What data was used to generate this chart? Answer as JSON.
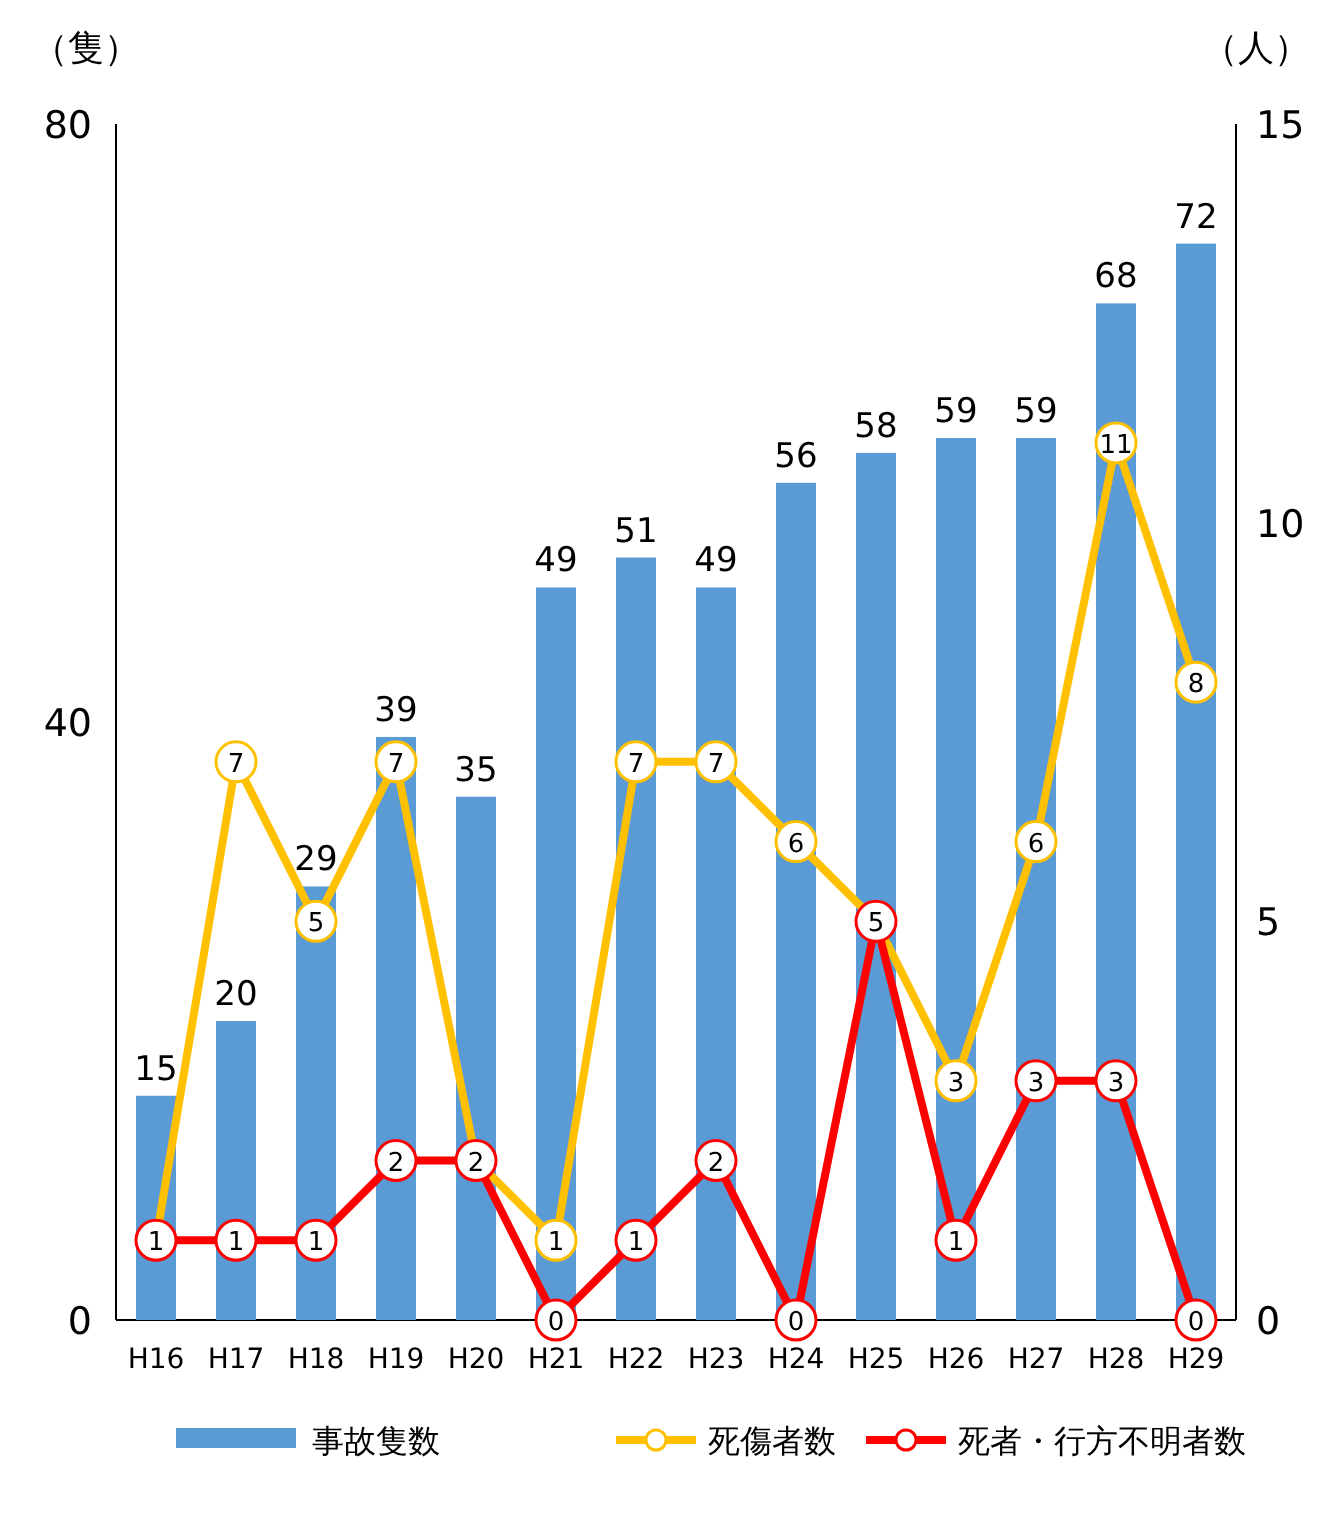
{
  "chart_data": {
    "type": "bar",
    "categories": [
      "H16",
      "H17",
      "H18",
      "H19",
      "H20",
      "H21",
      "H22",
      "H23",
      "H24",
      "H25",
      "H26",
      "H27",
      "H28",
      "H29"
    ],
    "series": [
      {
        "name": "事故隻数",
        "color": "#5b9bd5",
        "values": [
          15,
          20,
          29,
          39,
          35,
          49,
          51,
          49,
          56,
          58,
          59,
          59,
          68,
          72
        ]
      },
      {
        "name": "死傷者数",
        "type": "line",
        "axis": "y2",
        "color": "#ffc000",
        "values": [
          1,
          7,
          5,
          7,
          2,
          1,
          7,
          7,
          6,
          5,
          3,
          6,
          11,
          8
        ],
        "value_labels": [
          null,
          "7",
          "5",
          "7",
          null,
          "1",
          "7",
          "7",
          "6",
          null,
          "3",
          "6",
          "11",
          "8"
        ]
      },
      {
        "name": "死者・行方不明者数",
        "type": "line",
        "axis": "y2",
        "color": "#ff0000",
        "values": [
          1,
          1,
          1,
          2,
          2,
          0,
          1,
          2,
          0,
          5,
          1,
          3,
          3,
          0
        ]
      }
    ],
    "ylabel": "（隻）",
    "y2label": "（人）",
    "ylim": [
      0,
      80
    ],
    "yticks": [
      0,
      40,
      80
    ],
    "y2lim": [
      0,
      15
    ],
    "y2ticks": [
      0,
      5,
      10,
      15
    ],
    "data_labels": true,
    "marker": "circle",
    "legend": "bottom"
  }
}
